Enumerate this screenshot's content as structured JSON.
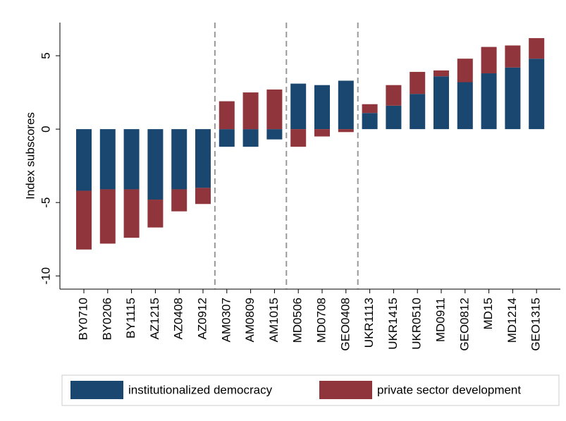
{
  "chart_data": {
    "type": "bar",
    "stacked": true,
    "y_label": "Index subscores",
    "categories": [
      "BY0710",
      "BY0206",
      "BY1115",
      "AZ1215",
      "AZ0408",
      "AZ0912",
      "AM0307",
      "AM0809",
      "AM1015",
      "MD0506",
      "MD0708",
      "GEO0408",
      "UKR1113",
      "UKR1415",
      "UKR0510",
      "MD0911",
      "GEO0812",
      "MD15",
      "MD1214",
      "GEO1315"
    ],
    "series": [
      {
        "name": "institutionalized democracy",
        "color": "#1a476f",
        "values": [
          -4.2,
          -4.1,
          -4.1,
          -4.8,
          -4.1,
          -4.0,
          -1.2,
          -1.2,
          -0.7,
          3.1,
          3.0,
          3.3,
          1.1,
          1.6,
          2.4,
          3.6,
          3.2,
          3.8,
          4.2,
          4.8
        ]
      },
      {
        "name": "private sector development",
        "color": "#90353b",
        "values": [
          -4.0,
          -3.7,
          -3.3,
          -1.9,
          -1.5,
          -1.1,
          1.9,
          2.5,
          2.7,
          -1.2,
          -0.5,
          -0.2,
          0.6,
          1.4,
          1.5,
          0.4,
          1.6,
          1.8,
          1.5,
          1.4
        ]
      }
    ],
    "ylim": [
      -10.9,
      7.26
    ],
    "yticks": [
      -10,
      -5,
      0,
      5
    ],
    "dividers_after": [
      5,
      8,
      11
    ],
    "legend": "bottom"
  }
}
